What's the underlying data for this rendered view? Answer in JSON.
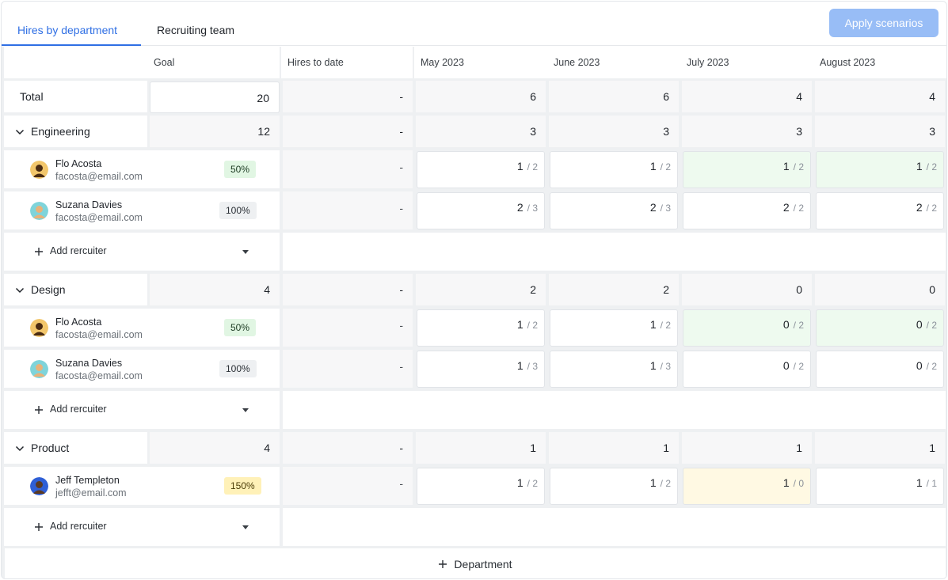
{
  "tabs": [
    {
      "label": "Hires by department",
      "active": true
    },
    {
      "label": "Recruiting team",
      "active": false
    }
  ],
  "apply_button": "Apply scenarios",
  "columns": {
    "goal": "Goal",
    "hires_to_date": "Hires to date",
    "months": [
      "May 2023",
      "June 2023",
      "July 2023",
      "August 2023"
    ]
  },
  "total": {
    "label": "Total",
    "goal": "20",
    "hires_to_date": "-",
    "months": [
      "6",
      "6",
      "4",
      "4"
    ]
  },
  "departments": [
    {
      "name": "Engineering",
      "goal": "12",
      "hires_to_date": "-",
      "months": [
        "3",
        "3",
        "3",
        "3"
      ],
      "recruiters": [
        {
          "name": "Flo Acosta",
          "email": "facosta@email.com",
          "badge": "50%",
          "badge_tone": "green",
          "hires_to_date": "-",
          "months": [
            {
              "a": "1",
              "b": "/ 2",
              "tone": "white"
            },
            {
              "a": "1",
              "b": "/ 2",
              "tone": "white"
            },
            {
              "a": "1",
              "b": "/ 2",
              "tone": "green"
            },
            {
              "a": "1",
              "b": "/ 2",
              "tone": "green"
            }
          ]
        },
        {
          "name": "Suzana Davies",
          "email": "facosta@email.com",
          "badge": "100%",
          "badge_tone": "neutral",
          "hires_to_date": "-",
          "months": [
            {
              "a": "2",
              "b": "/ 3",
              "tone": "white"
            },
            {
              "a": "2",
              "b": "/ 3",
              "tone": "white"
            },
            {
              "a": "2",
              "b": "/ 2",
              "tone": "white"
            },
            {
              "a": "2",
              "b": "/ 2",
              "tone": "white"
            }
          ]
        }
      ]
    },
    {
      "name": "Design",
      "goal": "4",
      "hires_to_date": "-",
      "months": [
        "2",
        "2",
        "0",
        "0"
      ],
      "recruiters": [
        {
          "name": "Flo Acosta",
          "email": "facosta@email.com",
          "badge": "50%",
          "badge_tone": "green",
          "hires_to_date": "-",
          "months": [
            {
              "a": "1",
              "b": "/ 2",
              "tone": "white"
            },
            {
              "a": "1",
              "b": "/ 2",
              "tone": "white"
            },
            {
              "a": "0",
              "b": "/ 2",
              "tone": "green"
            },
            {
              "a": "0",
              "b": "/ 2",
              "tone": "green"
            }
          ]
        },
        {
          "name": "Suzana Davies",
          "email": "facosta@email.com",
          "badge": "100%",
          "badge_tone": "neutral",
          "hires_to_date": "-",
          "months": [
            {
              "a": "1",
              "b": "/ 3",
              "tone": "white"
            },
            {
              "a": "1",
              "b": "/ 3",
              "tone": "white"
            },
            {
              "a": "0",
              "b": "/ 2",
              "tone": "white"
            },
            {
              "a": "0",
              "b": "/ 2",
              "tone": "white"
            }
          ]
        }
      ]
    },
    {
      "name": "Product",
      "goal": "4",
      "hires_to_date": "-",
      "months": [
        "1",
        "1",
        "1",
        "1"
      ],
      "recruiters": [
        {
          "name": "Jeff Templeton",
          "email": "jefft@email.com",
          "badge": "150%",
          "badge_tone": "yellow",
          "hires_to_date": "-",
          "months": [
            {
              "a": "1",
              "b": "/ 2",
              "tone": "white"
            },
            {
              "a": "1",
              "b": "/ 2",
              "tone": "white"
            },
            {
              "a": "1",
              "b": "/ 0",
              "tone": "yellow"
            },
            {
              "a": "1",
              "b": "/ 1",
              "tone": "white"
            }
          ]
        }
      ]
    }
  ],
  "add_recruiter_label": "Add rercuiter",
  "add_department_label": "Department",
  "icons": {
    "chevron": "chevron-down-icon",
    "plus": "plus-icon",
    "caret": "caret-down-icon"
  },
  "colors": {
    "accent": "#2f6fe4",
    "apply_button": "#98bdf6",
    "over_goal": "#fff9e3",
    "on_track": "#eefaef"
  }
}
